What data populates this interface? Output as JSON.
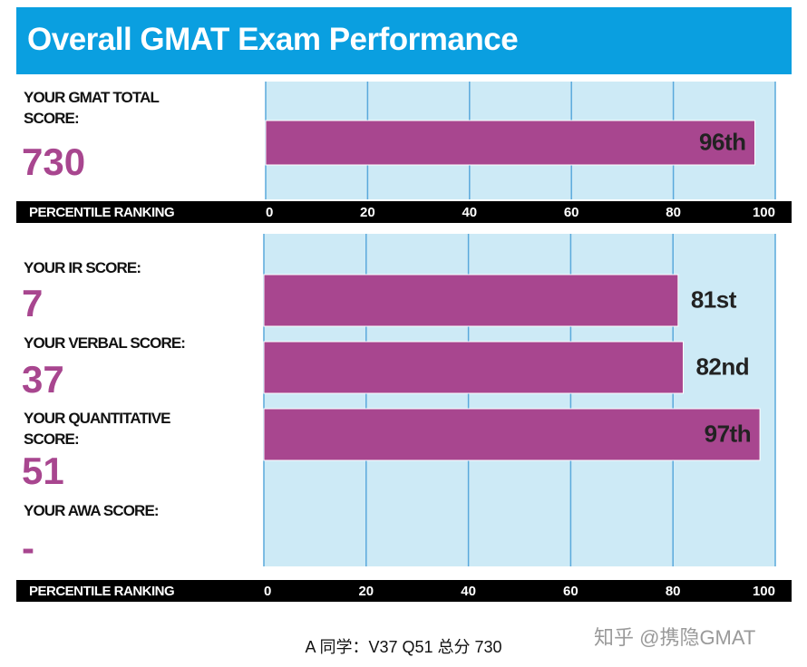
{
  "title": "Overall GMAT Exam Performance",
  "chart_data": [
    {
      "type": "bar",
      "orientation": "horizontal",
      "categories": [
        "YOUR GMAT TOTAL SCORE:"
      ],
      "scores": [
        "730"
      ],
      "values": [
        96
      ],
      "value_labels": [
        "96th"
      ],
      "color": "#a8468f",
      "background": "#cdeaf6",
      "grid_color": "#5aa9dc",
      "xlabel": "PERCENTILE RANKING",
      "xlim": [
        0,
        100
      ],
      "xticks": [
        0,
        20,
        40,
        60,
        80,
        100
      ],
      "grid": true
    },
    {
      "type": "bar",
      "orientation": "horizontal",
      "categories": [
        "YOUR IR SCORE:",
        "YOUR VERBAL SCORE:",
        "YOUR QUANTITATIVE SCORE:",
        "YOUR AWA SCORE:"
      ],
      "scores": [
        "7",
        "37",
        "51",
        "-"
      ],
      "values": [
        81,
        82,
        97,
        null
      ],
      "value_labels": [
        "81st",
        "82nd",
        "97th",
        null
      ],
      "color": "#a8468f",
      "background": "#cdeaf6",
      "grid_color": "#5aa9dc",
      "xlabel": "PERCENTILE RANKING",
      "xlim": [
        0,
        100
      ],
      "xticks": [
        0,
        20,
        40,
        60,
        80,
        100
      ],
      "grid": true
    }
  ],
  "caption": "A 同学：V37 Q51 总分 730",
  "watermark": "知乎 @携隐GMAT"
}
